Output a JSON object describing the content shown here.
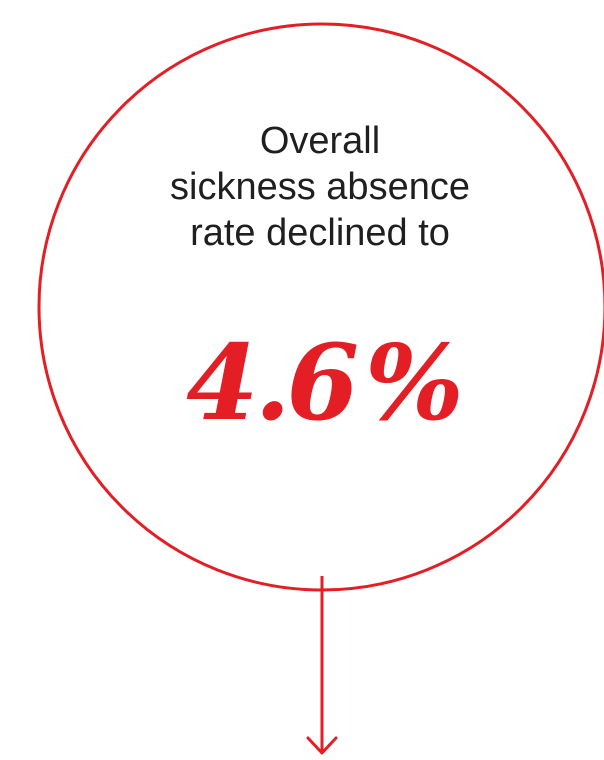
{
  "headline": {
    "line1": "Overall",
    "line2": "sickness absence",
    "line3": "rate declined to"
  },
  "stat": {
    "value": "4.6",
    "unit": "%"
  },
  "colors": {
    "accent": "#e31e24",
    "text": "#1f1f1f",
    "background": "#ffffff"
  },
  "icons": {
    "pointer": "arrow-down-icon"
  }
}
